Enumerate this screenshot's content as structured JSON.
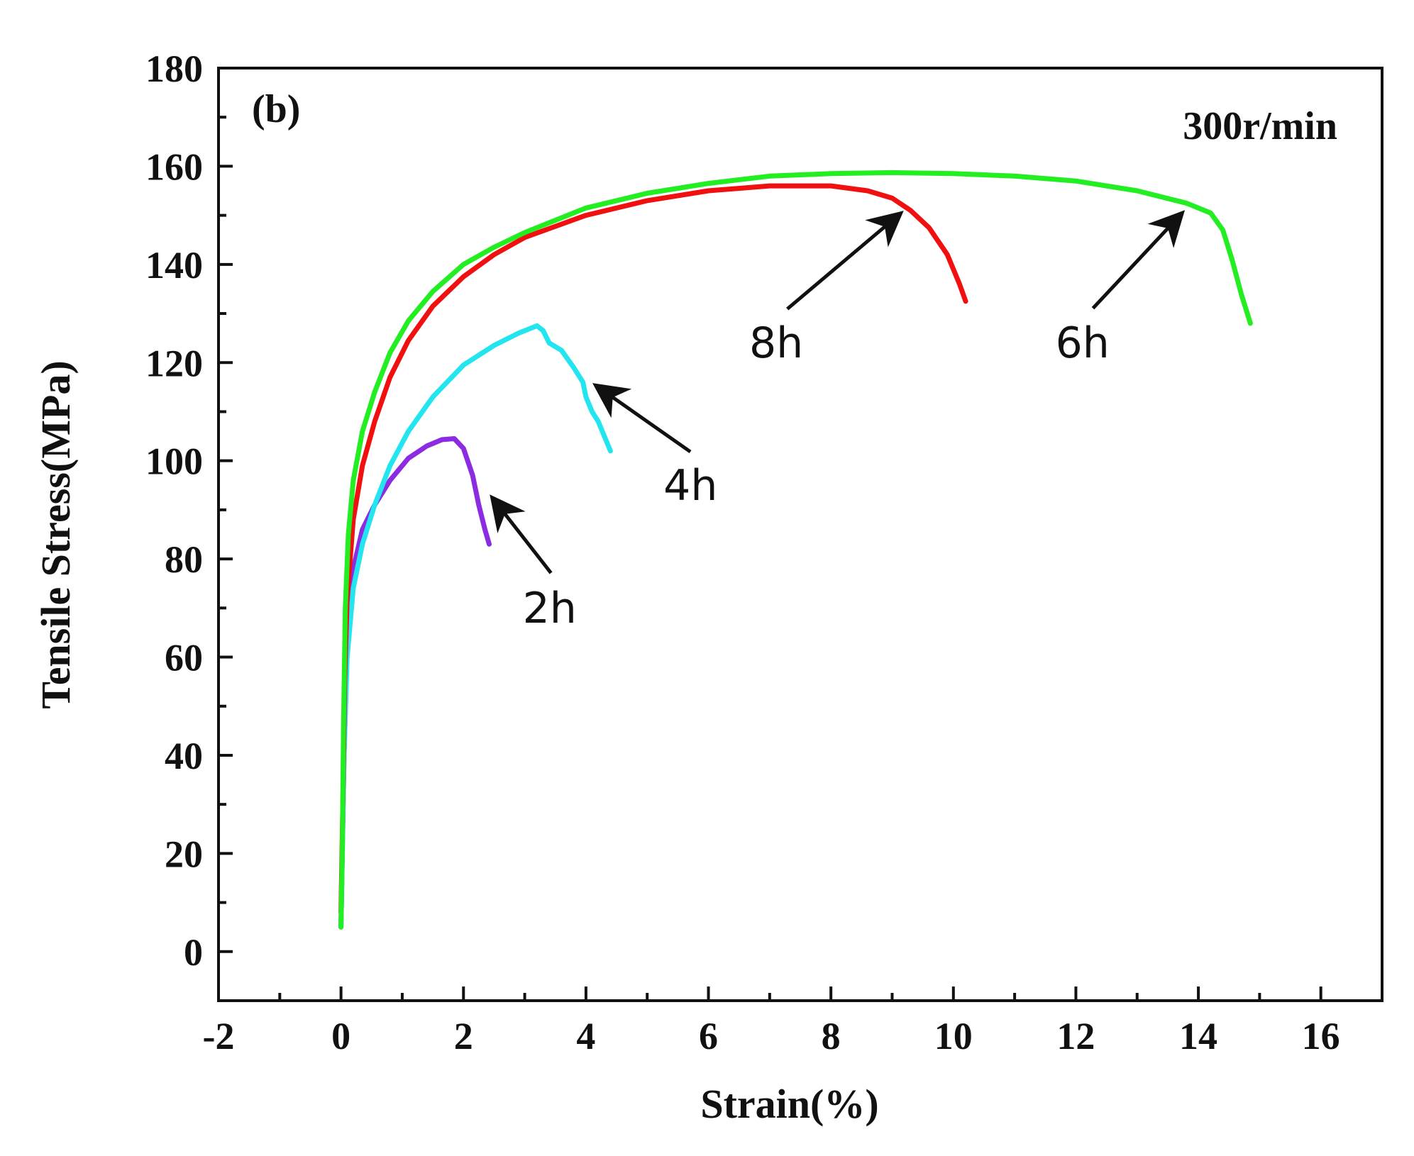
{
  "chart_data": {
    "type": "line",
    "panel_label": "(b)",
    "condition_label": "300r/min",
    "xlabel": "Strain(%)",
    "ylabel": "Tensile Stress(MPa)",
    "xlim": [
      -2,
      17
    ],
    "ylim": [
      -10,
      180
    ],
    "xticks": [
      -2,
      0,
      2,
      4,
      6,
      8,
      10,
      12,
      14,
      16
    ],
    "yticks": [
      0,
      20,
      40,
      60,
      80,
      100,
      120,
      140,
      160,
      180
    ],
    "grid": false,
    "series": [
      {
        "name": "2h",
        "color": "#8B2BE2",
        "points": [
          [
            0,
            5
          ],
          [
            0.05,
            40
          ],
          [
            0.1,
            62
          ],
          [
            0.2,
            78
          ],
          [
            0.35,
            86
          ],
          [
            0.55,
            91
          ],
          [
            0.8,
            96
          ],
          [
            1.1,
            100.5
          ],
          [
            1.4,
            103
          ],
          [
            1.65,
            104.3
          ],
          [
            1.85,
            104.5
          ],
          [
            2.0,
            102.5
          ],
          [
            2.15,
            97
          ],
          [
            2.25,
            91
          ],
          [
            2.35,
            86
          ],
          [
            2.42,
            83
          ]
        ]
      },
      {
        "name": "4h",
        "color": "#22E5F0",
        "points": [
          [
            0,
            5
          ],
          [
            0.05,
            40
          ],
          [
            0.1,
            60
          ],
          [
            0.2,
            74
          ],
          [
            0.35,
            83
          ],
          [
            0.55,
            91
          ],
          [
            0.8,
            99
          ],
          [
            1.1,
            106
          ],
          [
            1.5,
            113
          ],
          [
            2.0,
            119.5
          ],
          [
            2.5,
            123.5
          ],
          [
            2.9,
            126
          ],
          [
            3.2,
            127.5
          ],
          [
            3.3,
            126.5
          ],
          [
            3.4,
            124
          ],
          [
            3.6,
            122.5
          ],
          [
            3.8,
            119
          ],
          [
            3.95,
            116
          ],
          [
            4.0,
            113
          ],
          [
            4.1,
            110
          ],
          [
            4.2,
            108
          ],
          [
            4.3,
            105
          ],
          [
            4.4,
            102
          ]
        ]
      },
      {
        "name": "8h",
        "color": "#F01010",
        "points": [
          [
            0,
            8
          ],
          [
            0.03,
            30
          ],
          [
            0.06,
            55
          ],
          [
            0.1,
            72
          ],
          [
            0.2,
            88
          ],
          [
            0.35,
            99
          ],
          [
            0.55,
            108
          ],
          [
            0.8,
            117
          ],
          [
            1.1,
            124.5
          ],
          [
            1.5,
            131.5
          ],
          [
            2.0,
            137.5
          ],
          [
            2.5,
            142
          ],
          [
            3.0,
            145.5
          ],
          [
            4.0,
            150
          ],
          [
            5.0,
            153
          ],
          [
            6.0,
            155
          ],
          [
            7.0,
            156
          ],
          [
            8.0,
            156
          ],
          [
            8.6,
            155
          ],
          [
            9.0,
            153.5
          ],
          [
            9.3,
            151
          ],
          [
            9.6,
            147.5
          ],
          [
            9.9,
            142
          ],
          [
            10.1,
            136
          ],
          [
            10.2,
            132.5
          ]
        ]
      },
      {
        "name": "6h",
        "color": "#22EE22",
        "points": [
          [
            0,
            5
          ],
          [
            0.02,
            20
          ],
          [
            0.04,
            45
          ],
          [
            0.07,
            70
          ],
          [
            0.12,
            85
          ],
          [
            0.2,
            96
          ],
          [
            0.35,
            106
          ],
          [
            0.55,
            114
          ],
          [
            0.8,
            122
          ],
          [
            1.1,
            128.5
          ],
          [
            1.5,
            134.5
          ],
          [
            2.0,
            140
          ],
          [
            2.5,
            143.5
          ],
          [
            3.0,
            146.5
          ],
          [
            4.0,
            151.5
          ],
          [
            5.0,
            154.5
          ],
          [
            6.0,
            156.5
          ],
          [
            7.0,
            158
          ],
          [
            8.0,
            158.5
          ],
          [
            9.0,
            158.7
          ],
          [
            10.0,
            158.5
          ],
          [
            11.0,
            158
          ],
          [
            12.0,
            157
          ],
          [
            13.0,
            155
          ],
          [
            13.8,
            152.5
          ],
          [
            14.2,
            150.5
          ],
          [
            14.4,
            147
          ],
          [
            14.55,
            141
          ],
          [
            14.7,
            134
          ],
          [
            14.85,
            128
          ]
        ]
      }
    ],
    "annotations": [
      {
        "text": "2h",
        "at": [
          2.5,
          92
        ],
        "label_at": [
          3.5,
          76
        ]
      },
      {
        "text": "4h",
        "at": [
          4.2,
          115
        ],
        "label_at": [
          5.8,
          101
        ]
      },
      {
        "text": "8h",
        "at": [
          9.1,
          150
        ],
        "label_at": [
          7.2,
          130
        ]
      },
      {
        "text": "6h",
        "at": [
          13.7,
          150
        ],
        "label_at": [
          12.2,
          130
        ]
      }
    ]
  }
}
